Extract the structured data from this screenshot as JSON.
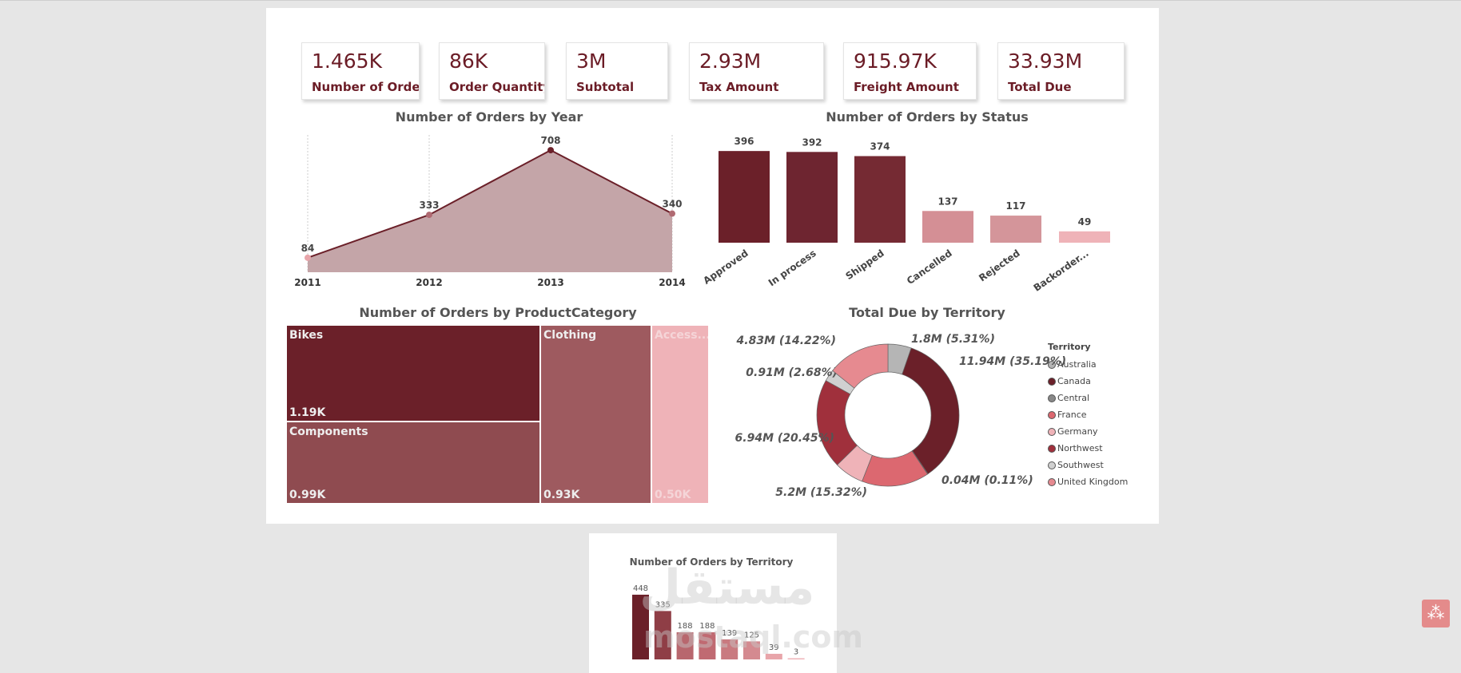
{
  "kpis": [
    {
      "value": "1.465K",
      "label": "Number of Order"
    },
    {
      "value": "86K",
      "label": "Order Quantity"
    },
    {
      "value": "3M",
      "label": "Subtotal"
    },
    {
      "value": "2.93M",
      "label": "Tax Amount"
    },
    {
      "value": "915.97K",
      "label": "Freight Amount"
    },
    {
      "value": "33.93M",
      "label": "Total Due"
    }
  ],
  "chart_data": [
    {
      "type": "area",
      "title": "Number of Orders by Year",
      "x": [
        "2011",
        "2012",
        "2013",
        "2014"
      ],
      "values": [
        84,
        333,
        708,
        340
      ],
      "colors": {
        "fill": "#c4a5a8",
        "line": "#6b2029"
      }
    },
    {
      "type": "bar",
      "title": "Number of Orders by Status",
      "categories": [
        "Approved",
        "In process",
        "Shipped",
        "Cancelled",
        "Rejected",
        "Backorder..."
      ],
      "values": [
        396,
        392,
        374,
        137,
        117,
        49
      ],
      "colors": [
        "#6b2029",
        "#6e2530",
        "#752a33",
        "#d48f95",
        "#d4959a",
        "#efb3b8"
      ]
    },
    {
      "type": "treemap",
      "title": "Number of Orders by ProductCategory",
      "items": [
        {
          "name": "Bikes",
          "label": "1.19K",
          "value": 1190,
          "color": "#6b2029"
        },
        {
          "name": "Components",
          "label": "0.99K",
          "value": 990,
          "color": "#8f4b50"
        },
        {
          "name": "Clothing",
          "label": "0.93K",
          "value": 930,
          "color": "#9e5a5f"
        },
        {
          "name": "Access...",
          "label": "0.50K",
          "value": 500,
          "color": "#efb3b8"
        }
      ]
    },
    {
      "type": "pie",
      "title": "Total Due by Territory",
      "legend_title": "Territory",
      "legend": "right",
      "slices": [
        {
          "name": "Australia",
          "label": "1.8M (5.31%)",
          "percent": 5.31,
          "color": "#b5b5b5"
        },
        {
          "name": "Canada",
          "label": "11.94M (35.19%)",
          "percent": 35.19,
          "color": "#6b2029"
        },
        {
          "name": "Central",
          "label": "0.04M (0.11%)",
          "percent": 0.11,
          "color": "#888888"
        },
        {
          "name": "France",
          "label": "5.2M (15.32%)",
          "percent": 15.32,
          "color": "#dc6870"
        },
        {
          "name": "Germany",
          "label": "",
          "percent": 6.72,
          "color": "#efb3b8"
        },
        {
          "name": "Northwest",
          "label": "6.94M (20.45%)",
          "percent": 20.45,
          "color": "#a0303c"
        },
        {
          "name": "Southwest",
          "label": "0.91M (2.68%)",
          "percent": 2.68,
          "color": "#d0d0d0"
        },
        {
          "name": "United Kingdom",
          "label": "4.83M (14.22%)",
          "percent": 14.22,
          "color": "#e68a90"
        }
      ]
    },
    {
      "type": "bar",
      "title": "Number of Orders by Territory",
      "values": [
        448,
        335,
        188,
        188,
        139,
        125,
        39,
        3
      ],
      "colors": [
        "#6b2029",
        "#8f3e46",
        "#b8676e",
        "#c06a72",
        "#c97a80",
        "#d48a90",
        "#e8a5aa",
        "#efb3b8"
      ]
    }
  ],
  "watermark": {
    "arabic": "مستقل",
    "latin": "mostaql.com"
  }
}
